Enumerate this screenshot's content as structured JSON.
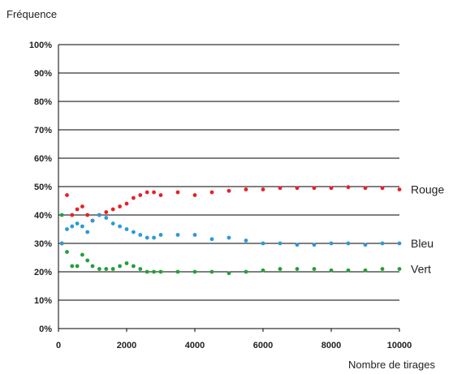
{
  "chart_data": {
    "type": "scatter",
    "title": "",
    "ylabel": "Fréquence",
    "xlabel": "Nombre de tirages",
    "xlim": [
      0,
      10000
    ],
    "ylim": [
      0,
      100
    ],
    "y_ticks": [
      "0%",
      "10%",
      "20%",
      "30%",
      "40%",
      "50%",
      "60%",
      "70%",
      "80%",
      "90%",
      "100%"
    ],
    "x_ticks": [
      "0",
      "2000",
      "4000",
      "6000",
      "8000",
      "10000"
    ],
    "grid": "horizontal",
    "series": [
      {
        "name": "Rouge",
        "color": "#e8202a",
        "x": [
          100,
          250,
          400,
          550,
          700,
          850,
          1000,
          1200,
          1400,
          1600,
          1800,
          2000,
          2200,
          2400,
          2600,
          2800,
          3000,
          3500,
          4000,
          4500,
          5000,
          5500,
          6000,
          6500,
          7000,
          7500,
          8000,
          8500,
          9000,
          9500,
          10000
        ],
        "values": [
          30,
          47,
          40,
          42,
          43,
          40,
          38,
          40,
          41,
          42,
          43,
          44,
          46,
          47,
          48,
          48,
          47,
          48,
          47,
          48,
          48.5,
          49,
          49,
          49.5,
          49.5,
          49.5,
          49.5,
          49.8,
          49.5,
          49.5,
          49
        ]
      },
      {
        "name": "Bleu",
        "color": "#2a9ad8",
        "x": [
          100,
          250,
          400,
          550,
          700,
          850,
          1000,
          1200,
          1400,
          1600,
          1800,
          2000,
          2200,
          2400,
          2600,
          2800,
          3000,
          3500,
          4000,
          4500,
          5000,
          5500,
          6000,
          6500,
          7000,
          7500,
          8000,
          8500,
          9000,
          9500,
          10000
        ],
        "values": [
          30,
          35,
          36,
          37,
          36,
          34,
          38,
          40,
          39,
          37,
          36,
          35,
          34,
          33,
          32,
          32,
          33,
          33,
          33,
          31.5,
          32,
          31,
          30,
          30,
          29.5,
          29.5,
          30,
          30,
          29.5,
          30,
          30
        ]
      },
      {
        "name": "Vert",
        "color": "#22a03a",
        "x": [
          100,
          250,
          400,
          550,
          700,
          850,
          1000,
          1200,
          1400,
          1600,
          1800,
          2000,
          2200,
          2400,
          2600,
          2800,
          3000,
          3500,
          4000,
          4500,
          5000,
          5500,
          6000,
          6500,
          7000,
          7500,
          8000,
          8500,
          9000,
          9500,
          10000
        ],
        "values": [
          40,
          27,
          22,
          22,
          26,
          24,
          22,
          21,
          21,
          21,
          22,
          23,
          22,
          21,
          20,
          20,
          20,
          20,
          20,
          20,
          19.5,
          20,
          20.5,
          21,
          21,
          21,
          20.5,
          20.5,
          20.5,
          21,
          21
        ]
      }
    ]
  }
}
